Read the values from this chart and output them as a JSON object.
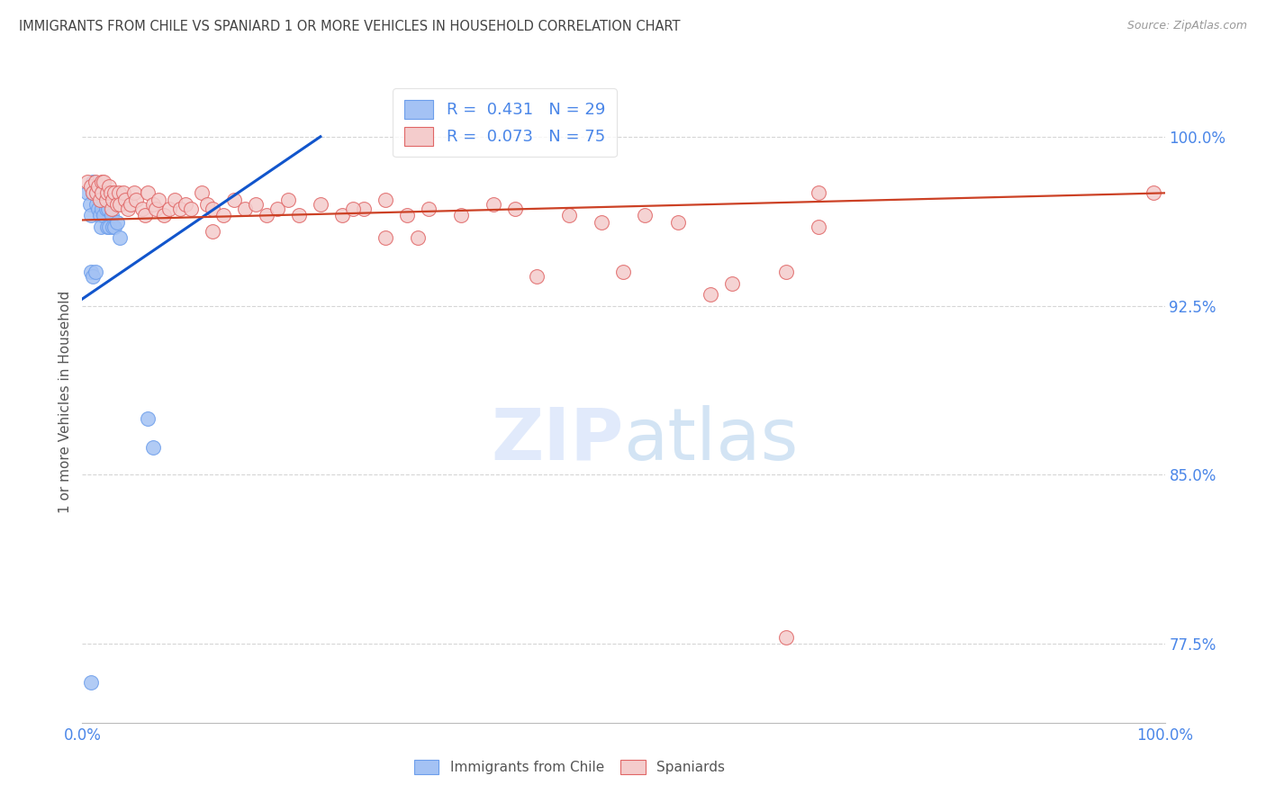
{
  "title": "IMMIGRANTS FROM CHILE VS SPANIARD 1 OR MORE VEHICLES IN HOUSEHOLD CORRELATION CHART",
  "source": "Source: ZipAtlas.com",
  "ylabel": "1 or more Vehicles in Household",
  "xlim": [
    0.0,
    1.0
  ],
  "ylim": [
    0.74,
    1.025
  ],
  "yticks": [
    0.775,
    0.85,
    0.925,
    1.0
  ],
  "ytick_labels": [
    "77.5%",
    "85.0%",
    "92.5%",
    "100.0%"
  ],
  "xticks": [
    0.0,
    0.1,
    0.2,
    0.3,
    0.4,
    0.5,
    0.6,
    0.7,
    0.8,
    0.9,
    1.0
  ],
  "xtick_labels": [
    "0.0%",
    "",
    "",
    "",
    "",
    "",
    "",
    "",
    "",
    "",
    "100.0%"
  ],
  "chile_color": "#a4c2f4",
  "spaniard_color": "#f4cccc",
  "chile_edge_color": "#6d9eeb",
  "spaniard_edge_color": "#e06666",
  "chile_line_color": "#1155cc",
  "spaniard_line_color": "#cc4125",
  "axis_label_color": "#4a86e8",
  "title_color": "#434343",
  "chile_x": [
    0.005,
    0.007,
    0.008,
    0.01,
    0.01,
    0.012,
    0.013,
    0.015,
    0.015,
    0.016,
    0.017,
    0.018,
    0.02,
    0.02,
    0.022,
    0.023,
    0.024,
    0.025,
    0.027,
    0.028,
    0.03,
    0.032,
    0.035,
    0.06,
    0.065,
    0.008,
    0.01,
    0.012,
    0.008
  ],
  "chile_y": [
    0.975,
    0.97,
    0.965,
    0.98,
    0.975,
    0.975,
    0.97,
    0.975,
    0.968,
    0.965,
    0.96,
    0.968,
    0.972,
    0.965,
    0.968,
    0.96,
    0.968,
    0.96,
    0.965,
    0.96,
    0.96,
    0.962,
    0.955,
    0.875,
    0.862,
    0.94,
    0.938,
    0.94,
    0.758
  ],
  "spaniard_x": [
    0.005,
    0.008,
    0.01,
    0.012,
    0.013,
    0.015,
    0.016,
    0.018,
    0.018,
    0.02,
    0.022,
    0.023,
    0.025,
    0.026,
    0.027,
    0.028,
    0.03,
    0.032,
    0.034,
    0.035,
    0.038,
    0.04,
    0.042,
    0.045,
    0.048,
    0.05,
    0.055,
    0.058,
    0.06,
    0.065,
    0.068,
    0.07,
    0.075,
    0.08,
    0.085,
    0.09,
    0.095,
    0.1,
    0.11,
    0.115,
    0.12,
    0.13,
    0.14,
    0.15,
    0.16,
    0.17,
    0.18,
    0.19,
    0.2,
    0.22,
    0.24,
    0.26,
    0.28,
    0.3,
    0.32,
    0.35,
    0.38,
    0.4,
    0.42,
    0.45,
    0.48,
    0.5,
    0.52,
    0.55,
    0.58,
    0.6,
    0.65,
    0.68,
    0.12,
    0.25,
    0.28,
    0.31,
    0.68,
    0.99,
    0.65
  ],
  "spaniard_y": [
    0.98,
    0.978,
    0.975,
    0.98,
    0.975,
    0.978,
    0.972,
    0.98,
    0.975,
    0.98,
    0.972,
    0.975,
    0.978,
    0.975,
    0.968,
    0.972,
    0.975,
    0.97,
    0.975,
    0.97,
    0.975,
    0.972,
    0.968,
    0.97,
    0.975,
    0.972,
    0.968,
    0.965,
    0.975,
    0.97,
    0.968,
    0.972,
    0.965,
    0.968,
    0.972,
    0.968,
    0.97,
    0.968,
    0.975,
    0.97,
    0.968,
    0.965,
    0.972,
    0.968,
    0.97,
    0.965,
    0.968,
    0.972,
    0.965,
    0.97,
    0.965,
    0.968,
    0.972,
    0.965,
    0.968,
    0.965,
    0.97,
    0.968,
    0.938,
    0.965,
    0.962,
    0.94,
    0.965,
    0.962,
    0.93,
    0.935,
    0.94,
    0.96,
    0.958,
    0.968,
    0.955,
    0.955,
    0.975,
    0.975,
    0.778
  ],
  "chile_trend": [
    0.0,
    0.22
  ],
  "chile_trend_y": [
    0.928,
    1.0
  ],
  "spaniard_trend": [
    0.0,
    1.0
  ],
  "spaniard_trend_y": [
    0.963,
    0.975
  ]
}
